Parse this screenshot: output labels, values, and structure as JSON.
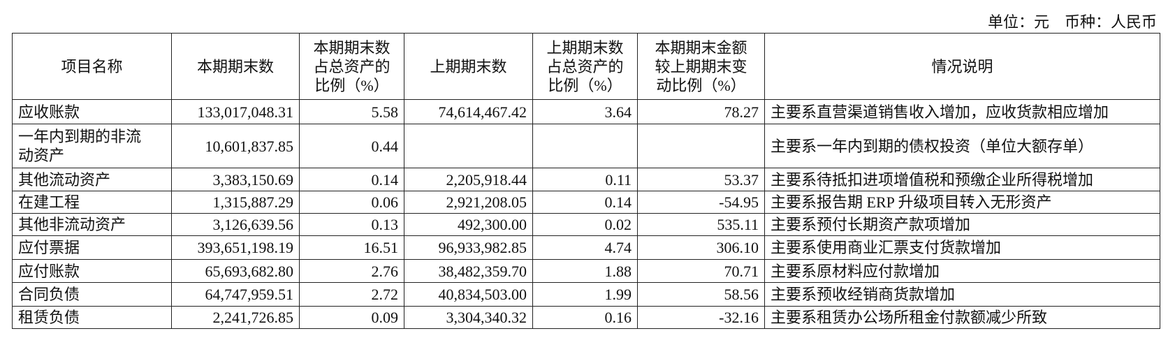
{
  "unit_line": "单位：元　币种：人民币",
  "table": {
    "headers": [
      "项目名称",
      "本期期末数",
      "本期期末数占总资产的比例（%）",
      "上期期末数",
      "上期期末数占总资产的比例（%）",
      "本期期末金额较上期期末变动比例（%）",
      "情况说明"
    ],
    "rows": [
      [
        "应收账款",
        "133,017,048.31",
        "5.58",
        "74,614,467.42",
        "3.64",
        "78.27",
        "主要系直营渠道销售收入增加，应收货款相应增加"
      ],
      [
        "一年内到期的非流动资产",
        "10,601,837.85",
        "0.44",
        null,
        null,
        null,
        "主要系一年内到期的债权投资（单位大额存单）"
      ],
      [
        "其他流动资产",
        "3,383,150.69",
        "0.14",
        "2,205,918.44",
        "0.11",
        "53.37",
        "主要系待抵扣进项增值税和预缴企业所得税增加"
      ],
      [
        "在建工程",
        "1,315,887.29",
        "0.06",
        "2,921,208.05",
        "0.14",
        "-54.95",
        "主要系报告期 ERP 升级项目转入无形资产"
      ],
      [
        "其他非流动资产",
        "3,126,639.56",
        "0.13",
        "492,300.00",
        "0.02",
        "535.11",
        "主要系预付长期资产款项增加"
      ],
      [
        "应付票据",
        "393,651,198.19",
        "16.51",
        "96,933,982.85",
        "4.74",
        "306.10",
        "主要系使用商业汇票支付货款增加"
      ],
      [
        "应付账款",
        "65,693,682.80",
        "2.76",
        "38,482,359.70",
        "1.88",
        "70.71",
        "主要系原材料应付款增加"
      ],
      [
        "合同负债",
        "64,747,959.51",
        "2.72",
        "40,834,503.00",
        "1.99",
        "58.56",
        "主要系预收经销商货款增加"
      ],
      [
        "租赁负债",
        "2,241,726.85",
        "0.09",
        "3,304,340.32",
        "0.16",
        "-32.16",
        "主要系租赁办公场所租金付款额减少所致"
      ]
    ]
  }
}
